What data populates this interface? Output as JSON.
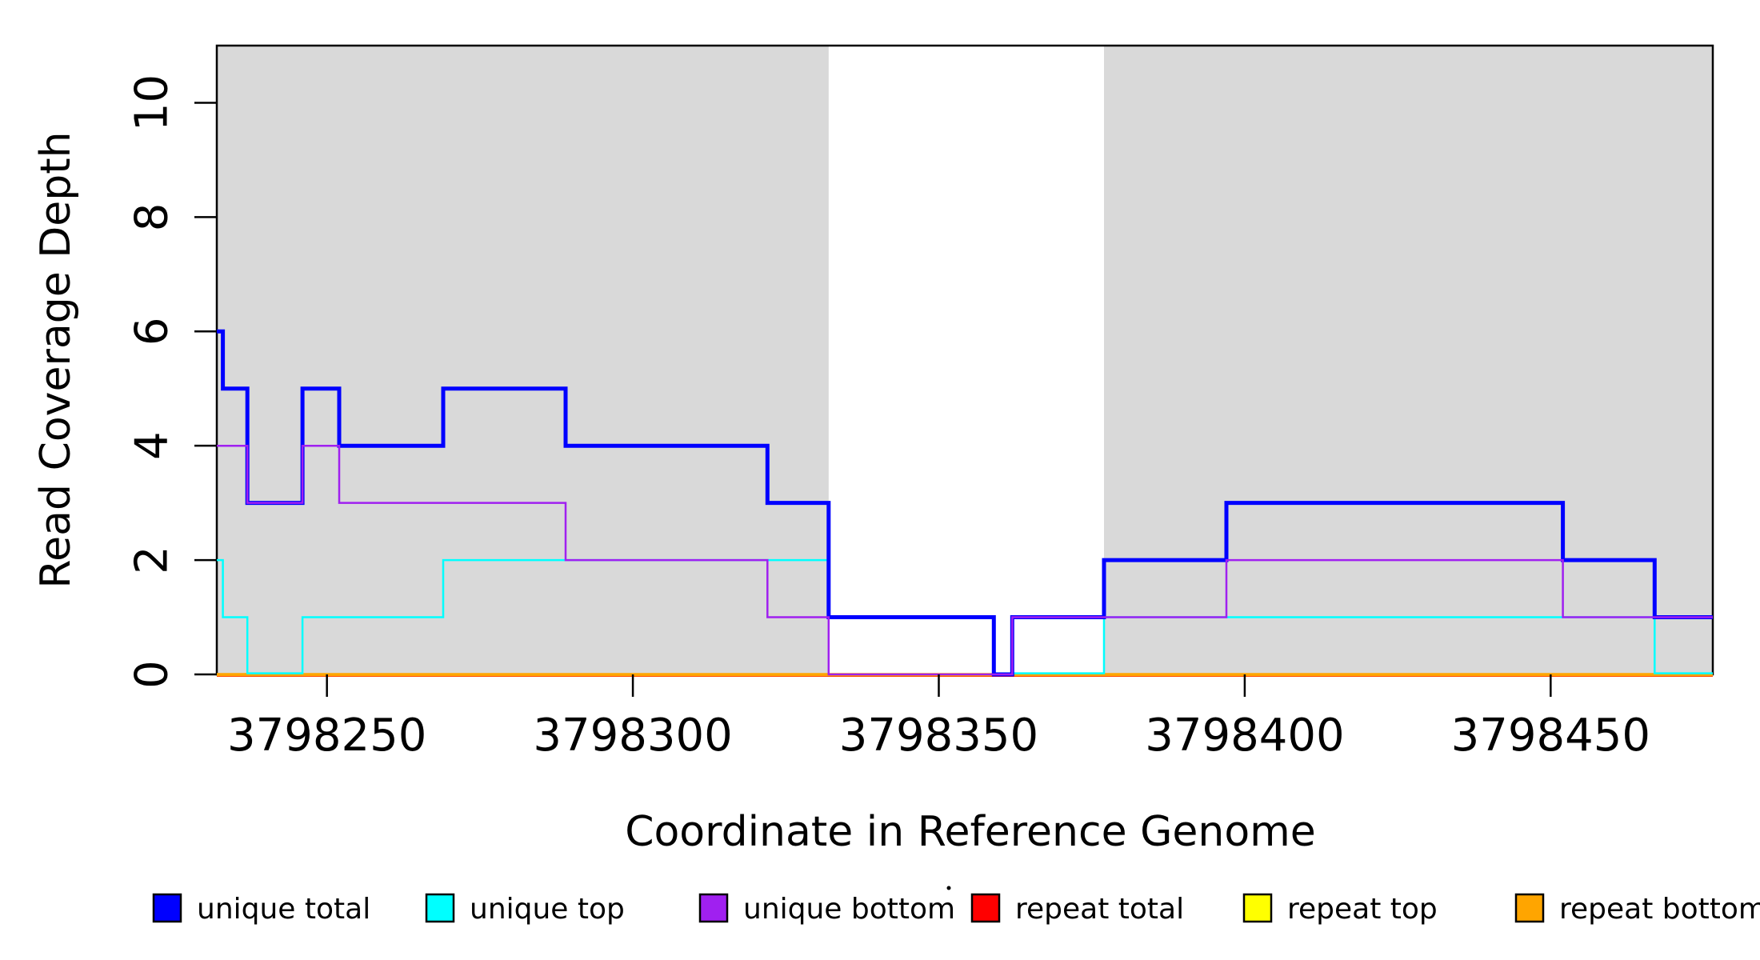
{
  "figure": {
    "background": "#ffffff",
    "shaded_region_color": "#D9D9D9",
    "box_color": "#000000"
  },
  "chart_data": {
    "type": "line",
    "subtype": "step-coverage",
    "title": "",
    "xlabel": "Coordinate in Reference Genome",
    "ylabel": "Read Coverage Depth",
    "xlim": [
      3798232,
      3798476.5
    ],
    "ylim": [
      0,
      11
    ],
    "x_ticks": [
      3798250,
      3798300,
      3798350,
      3798400,
      3798450
    ],
    "x_tick_labels": [
      "3798250",
      "3798300",
      "3798350",
      "3798400",
      "3798450"
    ],
    "y_ticks": [
      0,
      2,
      4,
      6,
      8,
      10
    ],
    "y_tick_labels": [
      "0",
      "2",
      "4",
      "6",
      "8",
      "10"
    ],
    "grid": false,
    "legend_position": "bottom",
    "background_regions": [
      {
        "name": "shaded-region-left",
        "x0": 3798232,
        "x1": 3798332,
        "color": "#D9D9D9"
      },
      {
        "name": "shaded-region-right",
        "x0": 3798377,
        "x1": 3798476.5,
        "color": "#D9D9D9"
      }
    ],
    "series": [
      {
        "id": "repeat-total",
        "name": "repeat total",
        "color": "#FF0000",
        "width": 2.5,
        "zero_dy": 1.8,
        "steps": [
          [
            3798232,
            0
          ]
        ]
      },
      {
        "id": "repeat-top",
        "name": "repeat top",
        "color": "#FFFF00",
        "width": 2.5,
        "zero_dy": 1.0,
        "steps": [
          [
            3798232,
            0
          ]
        ]
      },
      {
        "id": "repeat-bottom",
        "name": "repeat bottom",
        "color": "#FFA500",
        "width": 4,
        "zero_dy": 0.3,
        "steps": [
          [
            3798232,
            0
          ]
        ]
      },
      {
        "id": "unique-top",
        "name": "unique top",
        "color": "#00FFFF",
        "width": 2.5,
        "zero_dy": -1.4,
        "steps": [
          [
            3798232,
            2
          ],
          [
            3798233,
            1
          ],
          [
            3798237,
            0
          ],
          [
            3798246,
            1
          ],
          [
            3798269,
            2
          ],
          [
            3798332,
            1
          ],
          [
            3798359,
            0
          ],
          [
            3798377,
            1
          ],
          [
            3798467,
            0
          ]
        ]
      },
      {
        "id": "unique-total",
        "name": "unique total",
        "color": "#0000FF",
        "width": 5,
        "zero_dy": 0,
        "steps": [
          [
            3798232,
            6
          ],
          [
            3798233,
            5
          ],
          [
            3798237,
            3
          ],
          [
            3798246,
            5
          ],
          [
            3798252,
            4
          ],
          [
            3798269,
            5
          ],
          [
            3798289,
            4
          ],
          [
            3798322,
            3
          ],
          [
            3798332,
            1
          ],
          [
            3798359,
            0
          ],
          [
            3798362,
            1
          ],
          [
            3798377,
            2
          ],
          [
            3798397,
            3
          ],
          [
            3798452,
            2
          ],
          [
            3798467,
            1
          ]
        ]
      },
      {
        "id": "unique-bottom",
        "name": "unique bottom",
        "color": "#A020F0",
        "width": 2.5,
        "zero_dy": 0,
        "steps": [
          [
            3798232,
            4
          ],
          [
            3798237,
            3
          ],
          [
            3798246,
            4
          ],
          [
            3798252,
            3
          ],
          [
            3798289,
            2
          ],
          [
            3798322,
            1
          ],
          [
            3798332,
            0
          ],
          [
            3798362,
            1
          ],
          [
            3798397,
            2
          ],
          [
            3798452,
            1
          ]
        ]
      }
    ],
    "legend": [
      {
        "id": "unique-total",
        "label": "unique total",
        "color": "#0000FF"
      },
      {
        "id": "unique-top",
        "label": "unique top",
        "color": "#00FFFF"
      },
      {
        "id": "unique-bottom",
        "label": "unique bottom",
        "color": "#A020F0"
      },
      {
        "id": "repeat-total",
        "label": "repeat total",
        "color": "#FF0000"
      },
      {
        "id": "repeat-top",
        "label": "repeat top",
        "color": "#FFFF00"
      },
      {
        "id": "repeat-bottom",
        "label": "repeat bottom",
        "color": "#FFA500"
      }
    ]
  }
}
